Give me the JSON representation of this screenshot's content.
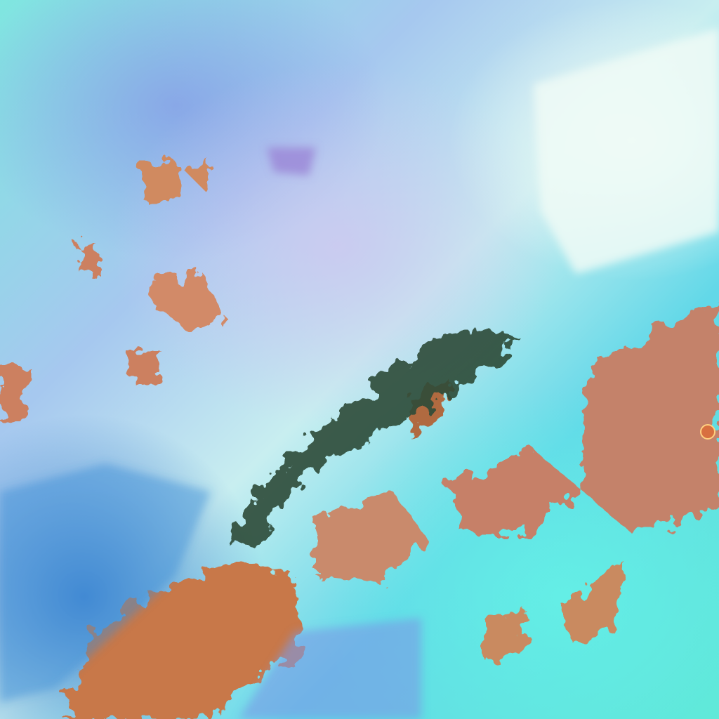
{
  "image": {
    "subject": "false-color-satellite-imagery",
    "colors": {
      "cloud_cyan": "#5fe8d6",
      "cloud_white": "#eefaf6",
      "cloud_violet": "#a9a6e6",
      "land_orange": "#c8784a",
      "ridge_dark": "#2e4a38"
    },
    "features": [
      "mountain-ridge"
    ]
  }
}
